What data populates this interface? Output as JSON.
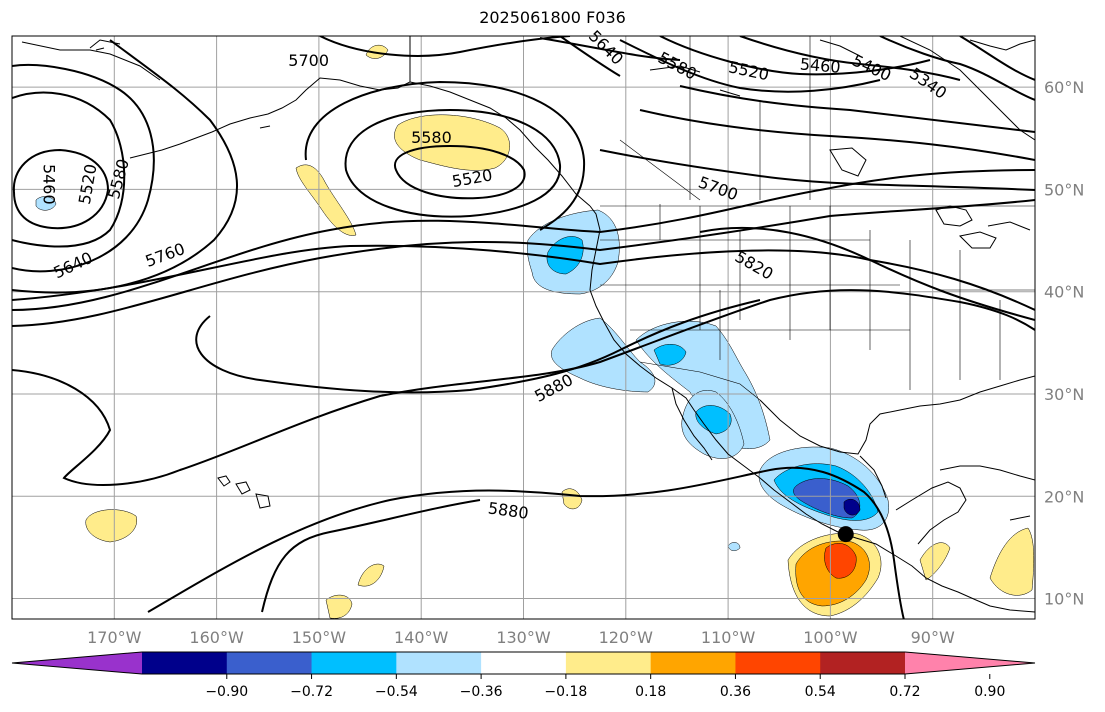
{
  "title": "2025061800 F036",
  "colors": {
    "land_outline": "#000000",
    "grid": "#a0a0a0",
    "contour": "#000000",
    "lat_label": "#808080",
    "lon_label": "#808080"
  },
  "map": {
    "projection": "plate-carree",
    "lon_range": [
      -180,
      -80
    ],
    "lat_range": [
      8,
      65
    ],
    "lon_ticks": [
      {
        "value": -170,
        "label": "170°W"
      },
      {
        "value": -160,
        "label": "160°W"
      },
      {
        "value": -150,
        "label": "150°W"
      },
      {
        "value": -140,
        "label": "140°W"
      },
      {
        "value": -130,
        "label": "130°W"
      },
      {
        "value": -120,
        "label": "120°W"
      },
      {
        "value": -110,
        "label": "110°W"
      },
      {
        "value": -100,
        "label": "100°W"
      },
      {
        "value": -90,
        "label": "90°W"
      }
    ],
    "lat_ticks": [
      {
        "value": 60,
        "label": "60°N"
      },
      {
        "value": 50,
        "label": "50°N"
      },
      {
        "value": 40,
        "label": "40°N"
      },
      {
        "value": 30,
        "label": "30°N"
      },
      {
        "value": 20,
        "label": "20°N"
      },
      {
        "value": 10,
        "label": "10°N"
      }
    ],
    "contour_labels": [
      {
        "text": "5700",
        "lon": -151,
        "lat": 62.5,
        "rot": 0
      },
      {
        "text": "5640",
        "lon": -122,
        "lat": 63.8,
        "rot": 45
      },
      {
        "text": "5580",
        "lon": -115,
        "lat": 62,
        "rot": 28
      },
      {
        "text": "5520",
        "lon": -108,
        "lat": 61.5,
        "rot": 12
      },
      {
        "text": "5460",
        "lon": -101,
        "lat": 62,
        "rot": 5
      },
      {
        "text": "5400",
        "lon": -96,
        "lat": 61.8,
        "rot": 25
      },
      {
        "text": "5340",
        "lon": -90.5,
        "lat": 60.3,
        "rot": 35
      },
      {
        "text": "5580",
        "lon": -139,
        "lat": 55,
        "rot": 0
      },
      {
        "text": "5520",
        "lon": -135,
        "lat": 51,
        "rot": -10
      },
      {
        "text": "5460",
        "lon": -176.5,
        "lat": 50.5,
        "rot": 90
      },
      {
        "text": "5520",
        "lon": -172.5,
        "lat": 50.5,
        "rot": -80
      },
      {
        "text": "5580",
        "lon": -169.5,
        "lat": 51,
        "rot": -75
      },
      {
        "text": "5640",
        "lon": -174,
        "lat": 42.5,
        "rot": -25
      },
      {
        "text": "5760",
        "lon": -165,
        "lat": 43.5,
        "rot": -20
      },
      {
        "text": "5700",
        "lon": -111,
        "lat": 50,
        "rot": 20
      },
      {
        "text": "5820",
        "lon": -107.5,
        "lat": 42.5,
        "rot": 30
      },
      {
        "text": "5880",
        "lon": -127,
        "lat": 30.5,
        "rot": -28
      },
      {
        "text": "5880",
        "lon": -131.5,
        "lat": 18.5,
        "rot": 8
      }
    ],
    "marker": {
      "name": "center-dot",
      "lon": -98.5,
      "lat": 16.3
    }
  },
  "colorbar": {
    "colors": [
      "#9932cc",
      "#00008b",
      "#3a5fcd",
      "#00bfff",
      "#b0e2ff",
      "#ffffff",
      "#ffec8b",
      "#ffa500",
      "#ff4500",
      "#b22222",
      "#ff82ab"
    ],
    "ticks": [
      "−0.90",
      "−0.72",
      "−0.54",
      "−0.36",
      "−0.18",
      "0.18",
      "0.36",
      "0.54",
      "0.72",
      "0.90"
    ]
  }
}
